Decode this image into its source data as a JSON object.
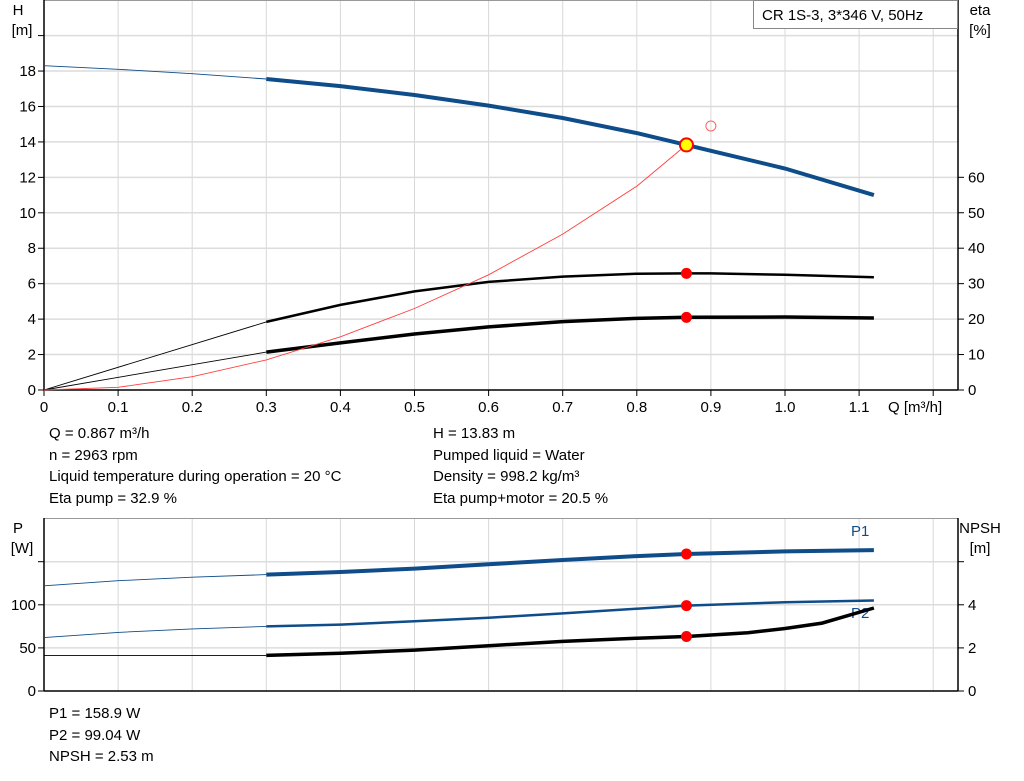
{
  "chart_data": [
    {
      "type": "line",
      "title": "CR 1S-3, 3*346 V, 50Hz",
      "xlabel": "Q [m³/h]",
      "ylabel": "H\n[m]",
      "y2label": "eta\n[%]",
      "xlim": [
        0,
        1.24
      ],
      "ylim": [
        0,
        22
      ],
      "y2lim": [
        0,
        110
      ],
      "grid": true,
      "x_ticks": [
        "0",
        "0.1",
        "0.2",
        "0.3",
        "0.4",
        "0.5",
        "0.6",
        "0.7",
        "0.8",
        "0.9",
        "1.0",
        "1.1"
      ],
      "y_ticks": [
        "0",
        "2",
        "4",
        "6",
        "8",
        "10",
        "12",
        "14",
        "16",
        "18"
      ],
      "y2_ticks": [
        "0",
        "10",
        "20",
        "30",
        "40",
        "50",
        "60"
      ],
      "series": [
        {
          "id": "H",
          "axis": "left",
          "color": "#0f4c8a",
          "thin_below": 0.3,
          "x": [
            0,
            0.1,
            0.2,
            0.3,
            0.4,
            0.5,
            0.6,
            0.7,
            0.8,
            0.867,
            0.9,
            1.0,
            1.12
          ],
          "y": [
            18.3,
            18.1,
            17.85,
            17.55,
            17.15,
            16.65,
            16.05,
            15.35,
            14.5,
            13.83,
            13.5,
            12.5,
            11.0
          ]
        },
        {
          "id": "eta-pump",
          "axis": "right",
          "color": "#000000",
          "thin_below": 0.3,
          "x": [
            0,
            0.3,
            0.4,
            0.5,
            0.6,
            0.7,
            0.8,
            0.867,
            0.9,
            1.0,
            1.12
          ],
          "y": [
            0,
            19.2,
            24,
            27.8,
            30.5,
            32,
            32.8,
            32.9,
            32.9,
            32.5,
            31.8
          ]
        },
        {
          "id": "eta-pump-motor",
          "axis": "right",
          "color": "#000000",
          "thin_below": 0.3,
          "x": [
            0,
            0.3,
            0.4,
            0.5,
            0.6,
            0.7,
            0.8,
            0.867,
            1.0,
            1.12
          ],
          "y": [
            0,
            10.7,
            13.3,
            15.8,
            17.8,
            19.3,
            20.2,
            20.5,
            20.6,
            20.3
          ]
        },
        {
          "id": "system-curve",
          "axis": "left",
          "color": "#ff4040",
          "x": [
            0,
            0.1,
            0.2,
            0.3,
            0.4,
            0.5,
            0.6,
            0.7,
            0.8,
            0.867
          ],
          "y": [
            0,
            0.15,
            0.75,
            1.7,
            3.0,
            4.6,
            6.5,
            8.8,
            11.5,
            13.83
          ]
        }
      ],
      "markers": [
        {
          "x": 0.867,
          "y": 13.83,
          "axis": "left",
          "style": "duty-point"
        },
        {
          "x": 0.867,
          "y": 32.9,
          "axis": "right",
          "style": "dot"
        },
        {
          "x": 0.867,
          "y": 20.5,
          "axis": "right",
          "style": "dot"
        },
        {
          "x": 0.9,
          "y": 14.9,
          "axis": "left",
          "style": "open-circle"
        }
      ]
    },
    {
      "type": "line",
      "ylabel": "P\n[W]",
      "y2label": "NPSH\n[m]",
      "xlim": [
        0,
        1.24
      ],
      "ylim": [
        0,
        200
      ],
      "y2lim": [
        0,
        8
      ],
      "grid": true,
      "y_ticks": [
        "0",
        "50",
        "100"
      ],
      "y2_ticks": [
        "0",
        "2",
        "4"
      ],
      "series": [
        {
          "id": "P1",
          "name": "P1",
          "axis": "left",
          "color": "#0f4c8a",
          "thin_below": 0.3,
          "x": [
            0,
            0.1,
            0.2,
            0.3,
            0.4,
            0.5,
            0.6,
            0.7,
            0.8,
            0.867,
            1.0,
            1.12
          ],
          "y": [
            122,
            128,
            132,
            135,
            138,
            142,
            147,
            152,
            156.5,
            158.9,
            162,
            163.5
          ]
        },
        {
          "id": "P2",
          "name": "P2",
          "axis": "left",
          "color": "#0f4c8a",
          "thin_below": 0.3,
          "x": [
            0,
            0.1,
            0.2,
            0.3,
            0.4,
            0.5,
            0.6,
            0.7,
            0.8,
            0.867,
            1.0,
            1.12
          ],
          "y": [
            62,
            68,
            72,
            75,
            77,
            81,
            85,
            90,
            95.5,
            99.04,
            103,
            105
          ]
        },
        {
          "id": "NPSH",
          "axis": "right",
          "color": "#000000",
          "thin_below": 0.3,
          "x": [
            0,
            0.3,
            0.4,
            0.5,
            0.6,
            0.7,
            0.8,
            0.867,
            0.95,
            1.0,
            1.05,
            1.12
          ],
          "y": [
            1.65,
            1.65,
            1.75,
            1.9,
            2.1,
            2.3,
            2.45,
            2.53,
            2.7,
            2.9,
            3.15,
            3.85
          ]
        }
      ],
      "markers": [
        {
          "x": 0.867,
          "y": 158.9,
          "axis": "left",
          "style": "dot"
        },
        {
          "x": 0.867,
          "y": 99.04,
          "axis": "left",
          "style": "dot"
        },
        {
          "x": 0.867,
          "y": 2.53,
          "axis": "right",
          "style": "dot"
        }
      ]
    }
  ],
  "info_top_left": [
    "Q = 0.867 m³/h",
    "n = 2963 rpm",
    "Liquid temperature during operation = 20 °C",
    "Eta pump = 32.9 %"
  ],
  "info_top_right": [
    "H = 13.83 m",
    "Pumped liquid = Water",
    "Density = 998.2 kg/m³",
    "Eta pump+motor = 20.5 %"
  ],
  "info_bottom": [
    "P1 = 158.9 W",
    "P2 = 99.04 W",
    "NPSH = 2.53 m"
  ]
}
